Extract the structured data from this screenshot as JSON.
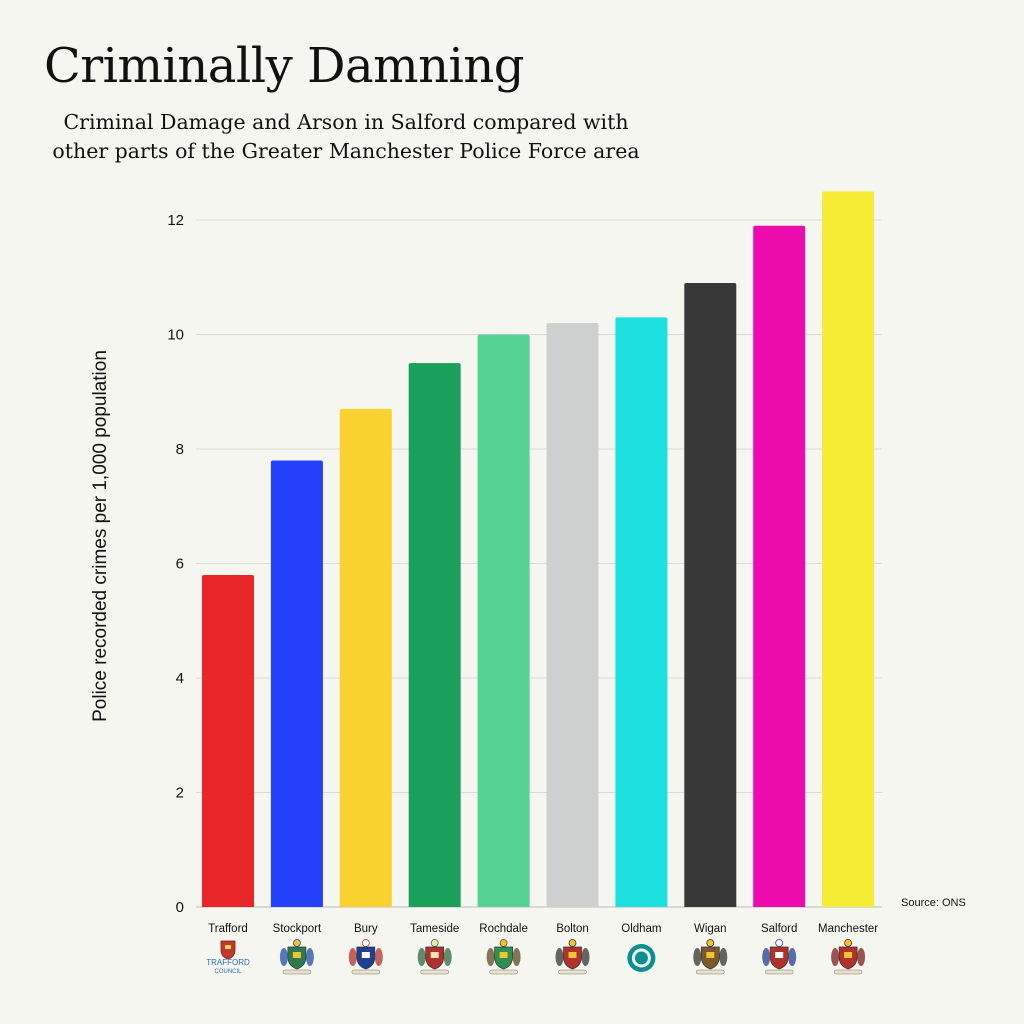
{
  "title": "Criminally Damning",
  "subtitle": "Criminal Damage and Arson in Salford compared with other parts of the Greater Manchester Police Force area",
  "source": "Source: ONS",
  "chart_data": {
    "type": "bar",
    "title": "Criminally Damning",
    "subtitle": "Criminal Damage and Arson in Salford compared with other parts of the Greater Manchester Police Force area",
    "xlabel": "",
    "ylabel": "Police recorded crimes per 1,000 population",
    "categories": [
      "Trafford",
      "Stockport",
      "Bury",
      "Tameside",
      "Rochdale",
      "Bolton",
      "Oldham",
      "Wigan",
      "Salford",
      "Manchester"
    ],
    "values": [
      5.8,
      7.8,
      8.7,
      9.5,
      10.0,
      10.2,
      10.3,
      10.9,
      11.9,
      12.5
    ],
    "colors": [
      "#e82626",
      "#2340fb",
      "#f9d22f",
      "#1aa05a",
      "#55d193",
      "#cdd0cf",
      "#1ce0de",
      "#383838",
      "#ec0bac",
      "#f5ec35"
    ],
    "ylim": [
      0,
      12.5
    ],
    "yticks": [
      0,
      2,
      4,
      6,
      8,
      10,
      12
    ],
    "grid": true,
    "legend": "none",
    "source": "Source: ONS",
    "category_icons": [
      "trafford-council-crest-icon",
      "stockport-crest-icon",
      "bury-crest-icon",
      "tameside-crest-icon",
      "rochdale-crest-icon",
      "bolton-crest-icon",
      "oldham-logo-icon",
      "wigan-crest-icon",
      "salford-crest-icon",
      "manchester-crest-icon"
    ],
    "icon_text": {
      "trafford_line1": "TRAFFORD",
      "trafford_line2": "COUNCIL"
    }
  }
}
